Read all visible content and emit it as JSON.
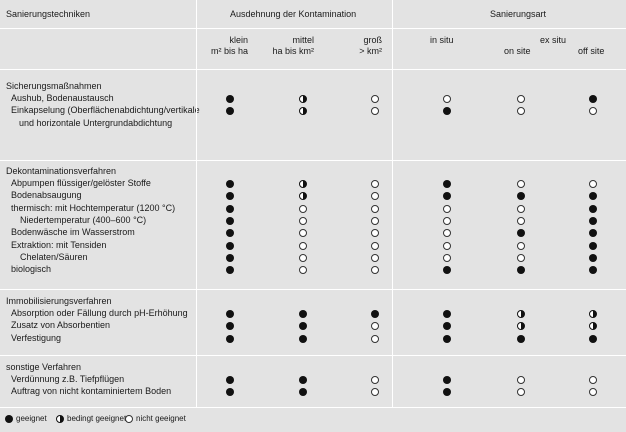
{
  "header": {
    "col1": "Sanierungstechniken",
    "group_extent": "Ausdehnung der Kontamination",
    "group_type": "Sanierungsart",
    "klein": "klein",
    "klein_sub": "m² bis ha",
    "mittel": "mittel",
    "mittel_sub": "ha bis km²",
    "gross": "groß",
    "gross_sub": "> km²",
    "in_situ": "in situ",
    "ex_situ": "ex situ",
    "on_site": "on site",
    "off_site": "off site"
  },
  "sections": [
    {
      "title": "Sicherungsmaßnahmen",
      "rows": [
        {
          "label": "Aushub, Bodenaustausch",
          "label2": "",
          "values": [
            "g",
            "b",
            "n",
            "n",
            "n",
            "g"
          ]
        },
        {
          "label": "Einkapselung (Oberflächenabdichtung/vertikale",
          "label2": "und horizontale Untergrundabdichtung",
          "values": [
            "g",
            "b",
            "n",
            "g",
            "n",
            "n"
          ]
        }
      ]
    },
    {
      "title": "Dekontaminationsverfahren",
      "rows": [
        {
          "label": "Abpumpen flüssiger/gelöster Stoffe",
          "label2": "",
          "values": [
            "g",
            "b",
            "n",
            "g",
            "n",
            "n"
          ]
        },
        {
          "label": "Bodenabsaugung",
          "label2": "",
          "values": [
            "g",
            "b",
            "n",
            "g",
            "g",
            "g"
          ]
        },
        {
          "label": "thermisch: mit Hochtemperatur (1200 °C)",
          "label2": "",
          "values": [
            "g",
            "n",
            "n",
            "n",
            "n",
            "g"
          ]
        },
        {
          "label": "Niedertemperatur (400–600 °C)",
          "label2": "",
          "values": [
            "g",
            "n",
            "n",
            "n",
            "n",
            "g"
          ]
        },
        {
          "label": "Bodenwäsche im Wasserstrom",
          "label2": "",
          "values": [
            "g",
            "n",
            "n",
            "n",
            "g",
            "g"
          ]
        },
        {
          "label": "Extraktion: mit Tensiden",
          "label2": "",
          "values": [
            "g",
            "n",
            "n",
            "n",
            "n",
            "g"
          ]
        },
        {
          "label": "Chelaten/Säuren",
          "label2": "",
          "values": [
            "g",
            "n",
            "n",
            "n",
            "n",
            "g"
          ]
        },
        {
          "label": "biologisch",
          "label2": "",
          "values": [
            "g",
            "n",
            "n",
            "g",
            "g",
            "g"
          ]
        }
      ]
    },
    {
      "title": "Immobilisierungsverfahren",
      "rows": [
        {
          "label": "Absorption oder Fällung durch pH-Erhöhung",
          "label2": "",
          "values": [
            "g",
            "g",
            "g",
            "g",
            "b",
            "b"
          ]
        },
        {
          "label": "Zusatz von Absorbentien",
          "label2": "",
          "values": [
            "g",
            "g",
            "n",
            "g",
            "b",
            "b"
          ]
        },
        {
          "label": "Verfestigung",
          "label2": "",
          "values": [
            "g",
            "g",
            "n",
            "g",
            "g",
            "g"
          ]
        }
      ]
    },
    {
      "title": "sonstige Verfahren",
      "rows": [
        {
          "label": "Verdünnung z.B. Tiefpflügen",
          "label2": "",
          "values": [
            "g",
            "g",
            "n",
            "g",
            "n",
            "n"
          ]
        },
        {
          "label": "Auftrag von nicht kontaminiertem Boden",
          "label2": "",
          "values": [
            "g",
            "g",
            "n",
            "g",
            "n",
            "n"
          ]
        }
      ]
    }
  ],
  "legend": {
    "geeignet": "geeignet",
    "bedingt": "bedingt geeignet",
    "nicht": "nicht geeignet"
  }
}
